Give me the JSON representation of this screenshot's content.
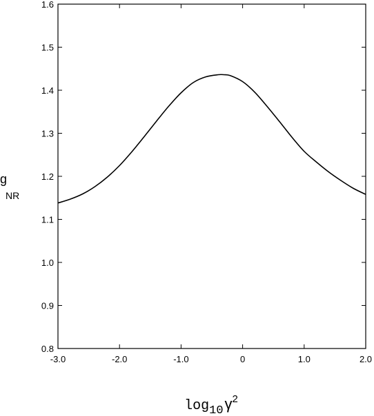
{
  "chart_data": {
    "type": "line",
    "title": "",
    "xlabel": {
      "base": "log",
      "sub": "10",
      "symbol": "γ",
      "sup": "2"
    },
    "ylabel": {
      "base": "g",
      "sub": "NR"
    },
    "xlim": [
      -3.0,
      2.0
    ],
    "ylim": [
      0.8,
      1.6
    ],
    "grid": false,
    "x_ticks": [
      {
        "value": -3.0,
        "label": "-3.0"
      },
      {
        "value": -2.0,
        "label": "-2.0"
      },
      {
        "value": -1.0,
        "label": "-1.0"
      },
      {
        "value": 0.0,
        "label": "0"
      },
      {
        "value": 1.0,
        "label": "1.0"
      },
      {
        "value": 2.0,
        "label": "2.0"
      }
    ],
    "y_ticks": [
      {
        "value": 0.8,
        "label": "0.8"
      },
      {
        "value": 0.9,
        "label": "0.9"
      },
      {
        "value": 1.0,
        "label": "1.0"
      },
      {
        "value": 1.1,
        "label": "1.1"
      },
      {
        "value": 1.2,
        "label": "1.2"
      },
      {
        "value": 1.3,
        "label": "1.3"
      },
      {
        "value": 1.4,
        "label": "1.4"
      },
      {
        "value": 1.5,
        "label": "1.5"
      },
      {
        "value": 1.6,
        "label": "1.6"
      }
    ],
    "series": [
      {
        "x": [
          -3.0,
          -2.8,
          -2.6,
          -2.4,
          -2.2,
          -2.0,
          -1.8,
          -1.6,
          -1.4,
          -1.2,
          -1.0,
          -0.8,
          -0.6,
          -0.4,
          -0.3,
          -0.2,
          0.0,
          0.2,
          0.4,
          0.6,
          0.8,
          1.0,
          1.2,
          1.4,
          1.6,
          1.8,
          2.0
        ],
        "y": [
          1.138,
          1.147,
          1.159,
          1.176,
          1.198,
          1.225,
          1.257,
          1.292,
          1.328,
          1.363,
          1.394,
          1.418,
          1.431,
          1.436,
          1.436,
          1.434,
          1.42,
          1.395,
          1.362,
          1.327,
          1.291,
          1.258,
          1.233,
          1.21,
          1.19,
          1.172,
          1.158
        ]
      }
    ]
  }
}
